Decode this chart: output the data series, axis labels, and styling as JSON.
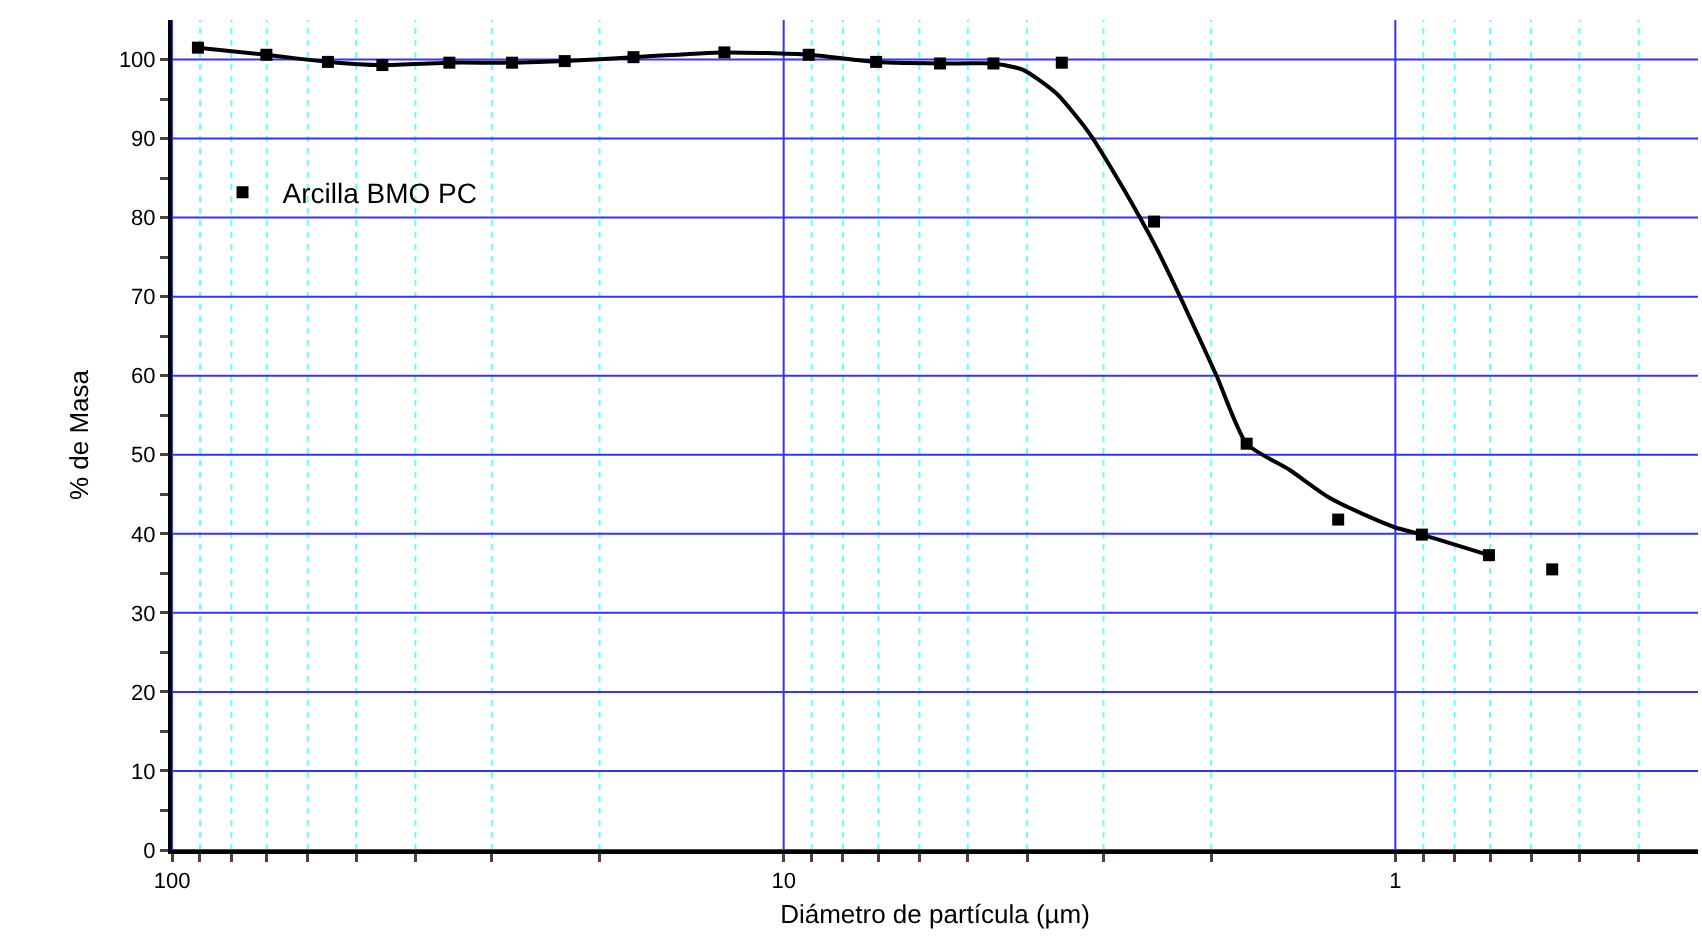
{
  "chart_data": {
    "type": "scatter",
    "xlabel": "Diámetro de partícula (µm)",
    "ylabel": "% de Masa",
    "log": "x",
    "legend": "top left",
    "grid": true,
    "xlim": [
      100,
      0.32
    ],
    "xticks": [
      100,
      {
        "value": 90,
        "label": null
      },
      {
        "value": 80,
        "label": null
      },
      {
        "value": 70,
        "label": null
      },
      {
        "value": 60,
        "label": null
      },
      {
        "value": 50,
        "label": null
      },
      {
        "value": 40,
        "label": null
      },
      {
        "value": 30,
        "label": null
      },
      {
        "value": 20,
        "label": null
      },
      10,
      {
        "value": 9,
        "label": null
      },
      {
        "value": 8,
        "label": null
      },
      {
        "value": 7,
        "label": null
      },
      {
        "value": 6,
        "label": null
      },
      {
        "value": 5,
        "label": null
      },
      {
        "value": 4,
        "label": null
      },
      {
        "value": 3,
        "label": null
      },
      {
        "value": 2,
        "label": null
      },
      1,
      {
        "value": 0.9,
        "label": null
      },
      {
        "value": 0.8,
        "label": null
      },
      {
        "value": 0.7,
        "label": null
      },
      {
        "value": 0.6,
        "label": null
      },
      {
        "value": 0.5,
        "label": null
      },
      {
        "value": 0.4,
        "label": null
      }
    ],
    "ylim": [
      0,
      105
    ],
    "yticks": [
      0,
      {
        "value": 5,
        "label": null
      },
      10,
      {
        "value": 15,
        "label": null
      },
      20,
      {
        "value": 25,
        "label": null
      },
      30,
      {
        "value": 35,
        "label": null
      },
      40,
      {
        "value": 45,
        "label": null
      },
      50,
      {
        "value": 55,
        "label": null
      },
      60,
      {
        "value": 65,
        "label": null
      },
      70,
      {
        "value": 75,
        "label": null
      },
      80,
      {
        "value": 85,
        "label": null
      },
      90,
      {
        "value": 95,
        "label": null
      },
      100
    ],
    "series": [
      {
        "name": "Arcilla BMO PC",
        "marker": "square",
        "color": "#000000",
        "x": [
          90.7,
          70.1,
          55.6,
          45.3,
          35.2,
          27.8,
          22.8,
          17.6,
          12.5,
          9.1,
          7.06,
          5.55,
          4.54,
          3.51,
          2.48,
          1.75,
          1.24,
          0.905,
          0.703,
          0.554
        ],
        "values": [
          101.5,
          100.6,
          99.7,
          99.3,
          99.6,
          99.6,
          99.8,
          100.3,
          100.9,
          100.6,
          99.7,
          99.5,
          99.5,
          99.6,
          79.5,
          51.4,
          41.8,
          39.9,
          37.3,
          35.5
        ]
      },
      {
        "type": "line",
        "marker": "none",
        "line_style": "solid",
        "color": "#000000",
        "x": [
          90.7,
          70.1,
          55.6,
          45.3,
          35.2,
          27.8,
          22.8,
          17.6,
          12.5,
          9.1,
          7.06,
          5.21,
          4.54,
          4.06,
          3.58,
          3.16,
          2.79,
          2.46,
          2.23,
          1.96,
          1.75,
          1.49,
          1.29,
          1.1,
          1,
          0.905,
          0.703
        ],
        "values": [
          101.5,
          100.6,
          99.7,
          99.3,
          99.6,
          99.6,
          99.8,
          100.3,
          100.9,
          100.6,
          99.7,
          99.5,
          99.5,
          98.7,
          95.7,
          90.6,
          83.8,
          76.2,
          69.4,
          60.0,
          51.4,
          48.1,
          44.7,
          42.1,
          40.8,
          39.9,
          37.3
        ]
      }
    ]
  }
}
